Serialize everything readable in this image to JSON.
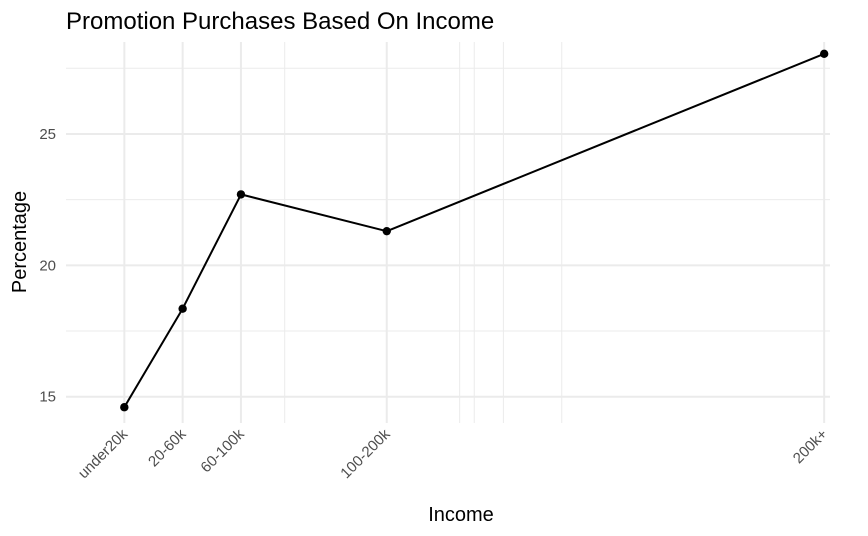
{
  "chart_data": {
    "type": "line",
    "title": "Promotion Purchases Based On Income",
    "xlabel": "Income",
    "ylabel": "Percentage",
    "categories": [
      "under20k",
      "20-60k",
      "60-100k",
      "100-200k",
      "200k+"
    ],
    "x_positions_k": [
      20,
      40,
      60,
      110,
      260
    ],
    "values": [
      14.6,
      18.35,
      22.7,
      21.3,
      28.05
    ],
    "xlim": [
      0,
      262
    ],
    "ylim": [
      14.0,
      28.5
    ],
    "y_major_ticks": [
      15,
      20,
      25
    ],
    "y_minor_ticks": [
      17.5,
      22.5,
      27.5
    ],
    "x_minor_grid": [
      75,
      135,
      140,
      150,
      170
    ],
    "grid": true,
    "line_color": "#000000",
    "point_color": "#000000",
    "grid_color": "#ebebeb"
  }
}
